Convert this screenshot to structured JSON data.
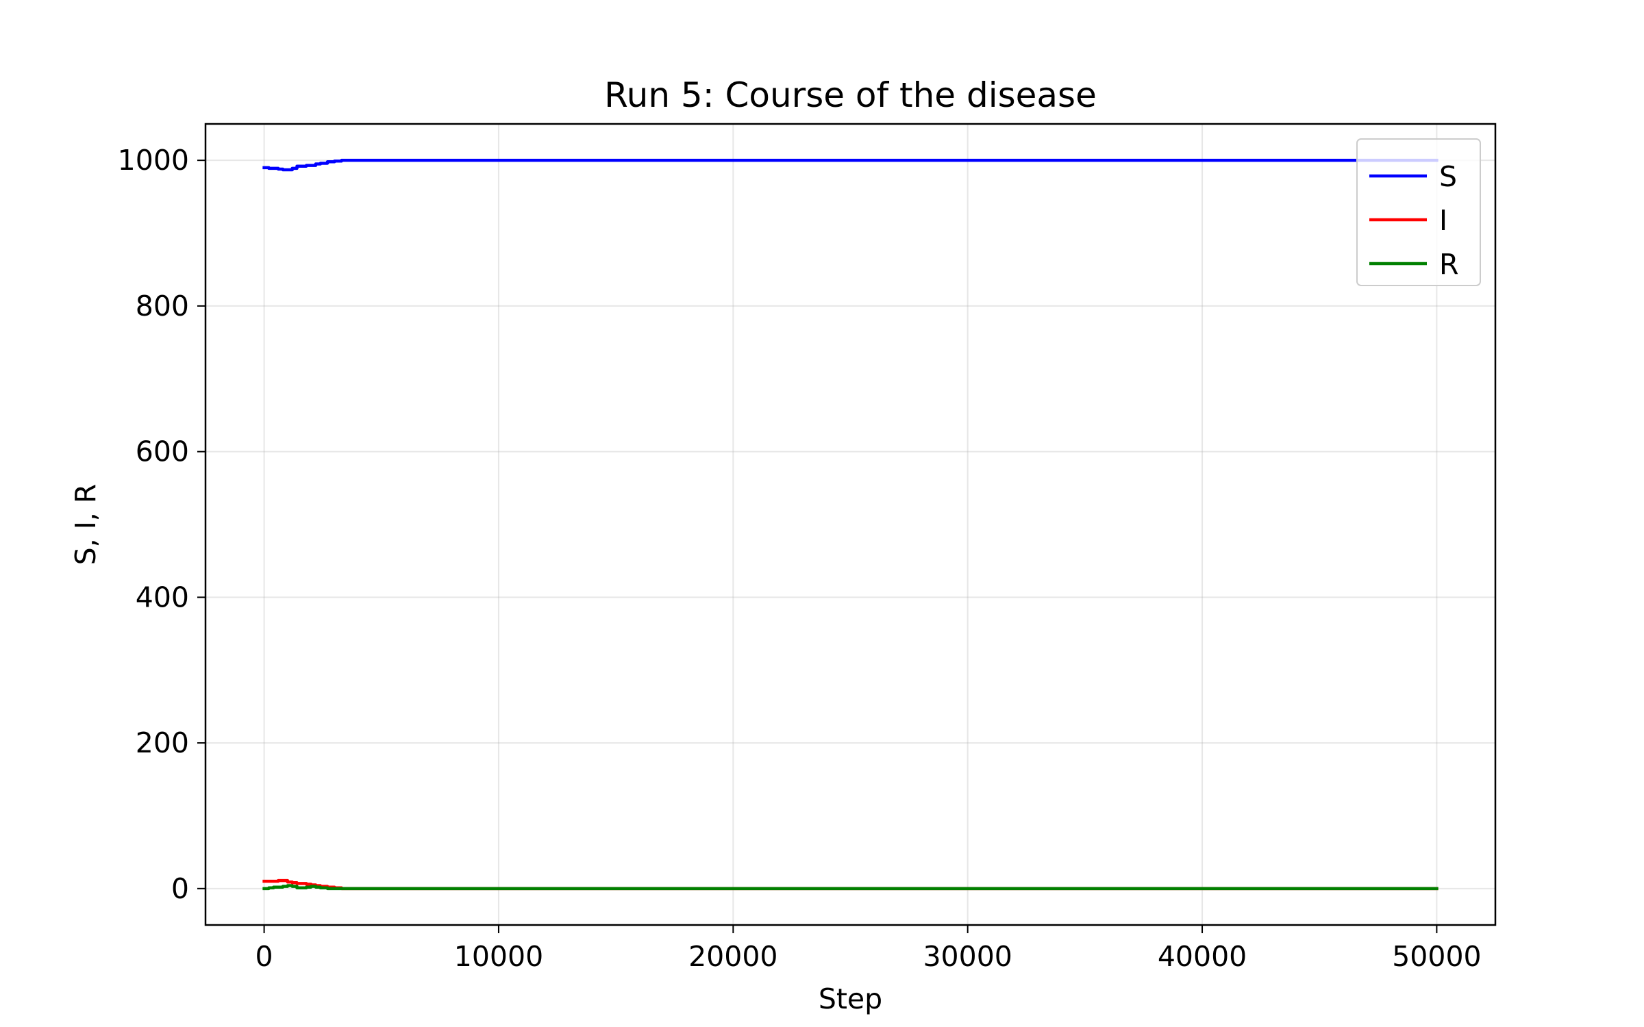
{
  "chart_data": {
    "type": "line",
    "title": "Run 5: Course of the disease",
    "xlabel": "Step",
    "ylabel": "S, I, R",
    "xlim": [
      -2500,
      52500
    ],
    "ylim": [
      -50,
      1050
    ],
    "xticks": [
      0,
      10000,
      20000,
      30000,
      40000,
      50000
    ],
    "xtick_labels": [
      "0",
      "10000",
      "20000",
      "30000",
      "40000",
      "50000"
    ],
    "yticks": [
      0,
      200,
      400,
      600,
      800,
      1000
    ],
    "ytick_labels": [
      "0",
      "200",
      "400",
      "600",
      "800",
      "1000"
    ],
    "grid": true,
    "legend_position": "top-right",
    "series": [
      {
        "name": "S",
        "color": "#0000ff",
        "x": [
          0,
          200,
          400,
          600,
          800,
          1000,
          1200,
          1400,
          1600,
          1800,
          2000,
          2200,
          2400,
          2700,
          3000,
          3300,
          3600,
          50000
        ],
        "y": [
          990,
          989,
          989,
          988,
          987,
          987,
          989,
          992,
          992,
          993,
          993,
          995,
          996,
          998,
          999,
          1000,
          1000,
          1000
        ]
      },
      {
        "name": "I",
        "color": "#ff0000",
        "x": [
          0,
          200,
          400,
          600,
          800,
          1000,
          1200,
          1400,
          1600,
          1800,
          2000,
          2200,
          2400,
          2700,
          3000,
          3300,
          3600,
          50000
        ],
        "y": [
          10,
          10,
          10,
          11,
          11,
          9,
          8,
          7,
          7,
          6,
          5,
          4,
          3,
          2,
          1,
          0,
          0,
          0
        ]
      },
      {
        "name": "R",
        "color": "#008000",
        "x": [
          0,
          200,
          400,
          600,
          800,
          1000,
          1200,
          1400,
          1600,
          1800,
          2000,
          2200,
          2400,
          2700,
          3000,
          3300,
          3600,
          50000
        ],
        "y": [
          0,
          1,
          2,
          2,
          3,
          4,
          3,
          1,
          1,
          2,
          3,
          2,
          1,
          0,
          0,
          0,
          0,
          0
        ]
      }
    ]
  }
}
